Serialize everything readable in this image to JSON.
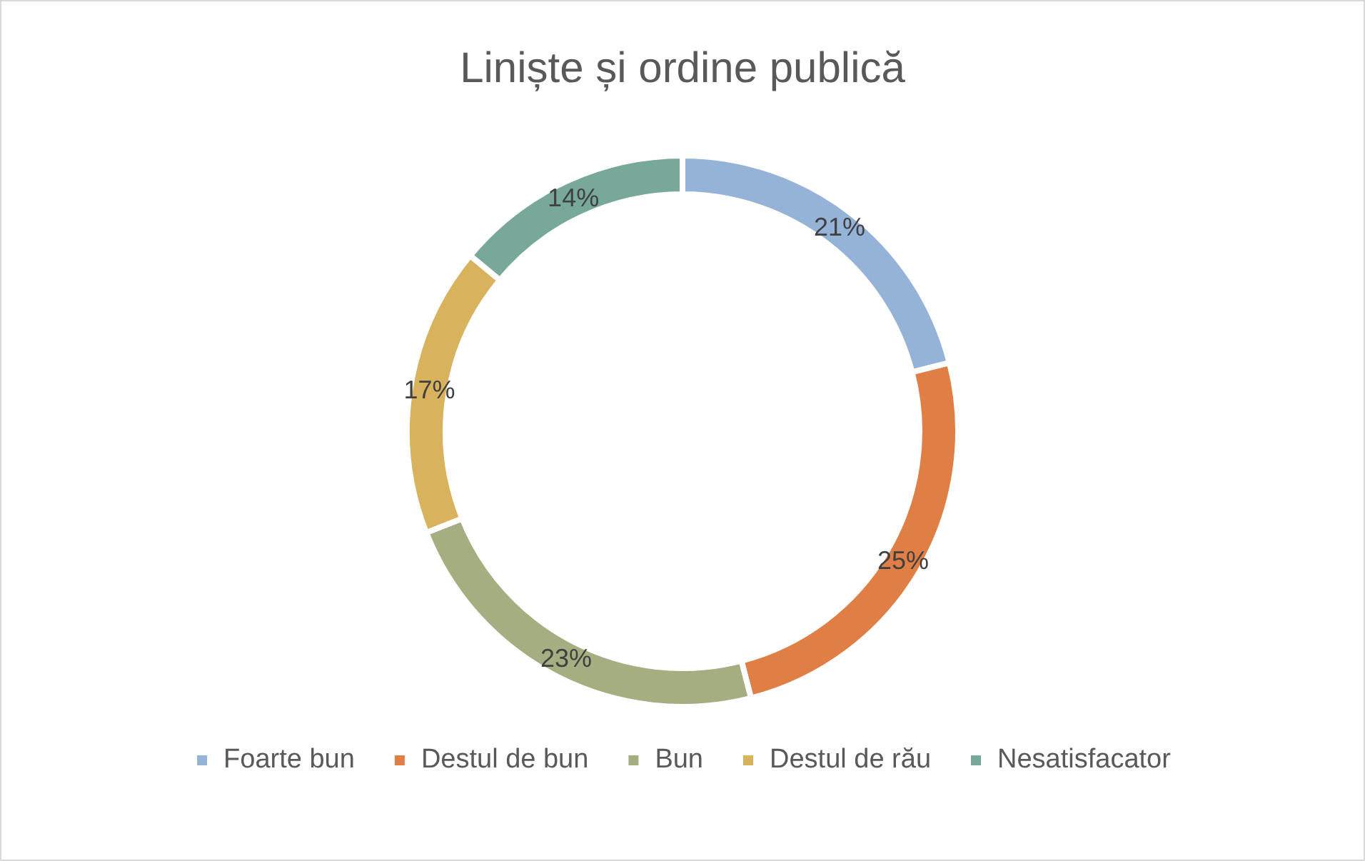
{
  "chart_data": {
    "type": "donut",
    "title": "Liniște și ordine publică",
    "categories": [
      "Foarte bun",
      "Destul de bun",
      "Bun",
      "Destul de rău",
      "Nesatisfacator"
    ],
    "values": [
      21,
      25,
      23,
      17,
      14
    ],
    "colors": [
      "#95b3d7",
      "#e07f45",
      "#a5ae80",
      "#d8b25c",
      "#78a89a"
    ],
    "value_labels": [
      "21%",
      "25%",
      "23%",
      "17%",
      "14%"
    ],
    "legend": "bottom"
  }
}
